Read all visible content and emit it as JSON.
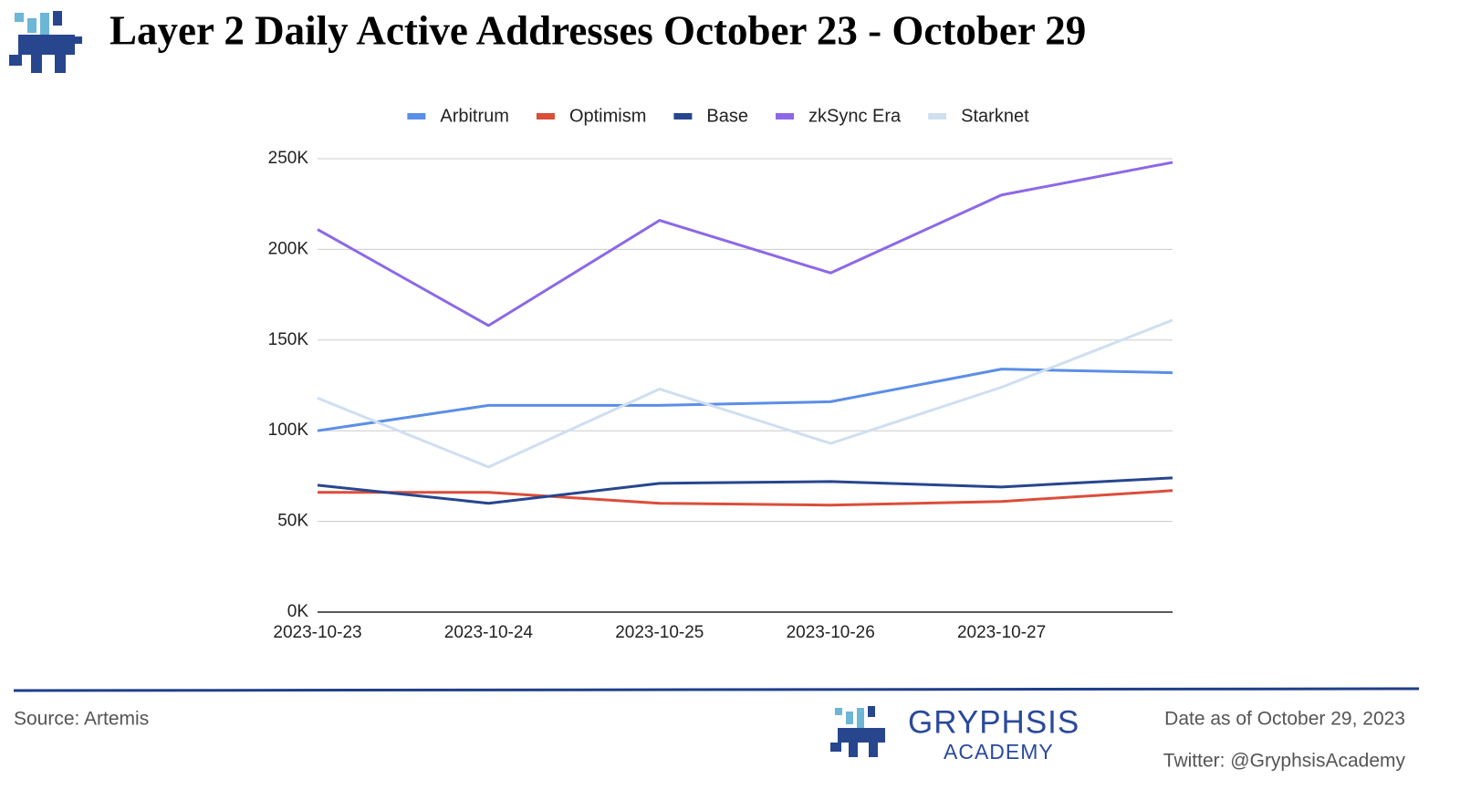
{
  "chart_data": {
    "type": "line",
    "title": "Layer 2 Daily Active Addresses October 23 - October 29",
    "categories": [
      "2023-10-23",
      "2023-10-24",
      "2023-10-25",
      "2023-10-26",
      "2023-10-27",
      null
    ],
    "series": [
      {
        "name": "Arbitrum",
        "color": "#5b8ee6",
        "values": [
          100000,
          114000,
          114000,
          116000,
          134000,
          132000
        ]
      },
      {
        "name": "Optimism",
        "color": "#db4e3a",
        "values": [
          66000,
          66000,
          60000,
          59000,
          61000,
          67000
        ]
      },
      {
        "name": "Base",
        "color": "#27468e",
        "values": [
          70000,
          60000,
          71000,
          72000,
          69000,
          74000
        ]
      },
      {
        "name": "zkSync Era",
        "color": "#8c68e6",
        "values": [
          211000,
          158000,
          216000,
          187000,
          230000,
          248000
        ]
      },
      {
        "name": "Starknet",
        "color": "#cfdff0",
        "values": [
          118000,
          80000,
          123000,
          93000,
          124000,
          161000
        ]
      }
    ],
    "ylim": [
      0,
      250000
    ],
    "yticks": [
      {
        "value": 0,
        "label": "0K"
      },
      {
        "value": 50000,
        "label": "50K"
      },
      {
        "value": 100000,
        "label": "100K"
      },
      {
        "value": 150000,
        "label": "150K"
      },
      {
        "value": 200000,
        "label": "200K"
      },
      {
        "value": 250000,
        "label": "250K"
      }
    ],
    "grid": true,
    "legend": "top"
  },
  "footer": {
    "source": "Source: Artemis",
    "brand": "GRYPHSIS",
    "brand_sub": "ACADEMY",
    "date": "Date as of October 29, 2023",
    "twitter": "Twitter: @GryphsisAcademy"
  }
}
